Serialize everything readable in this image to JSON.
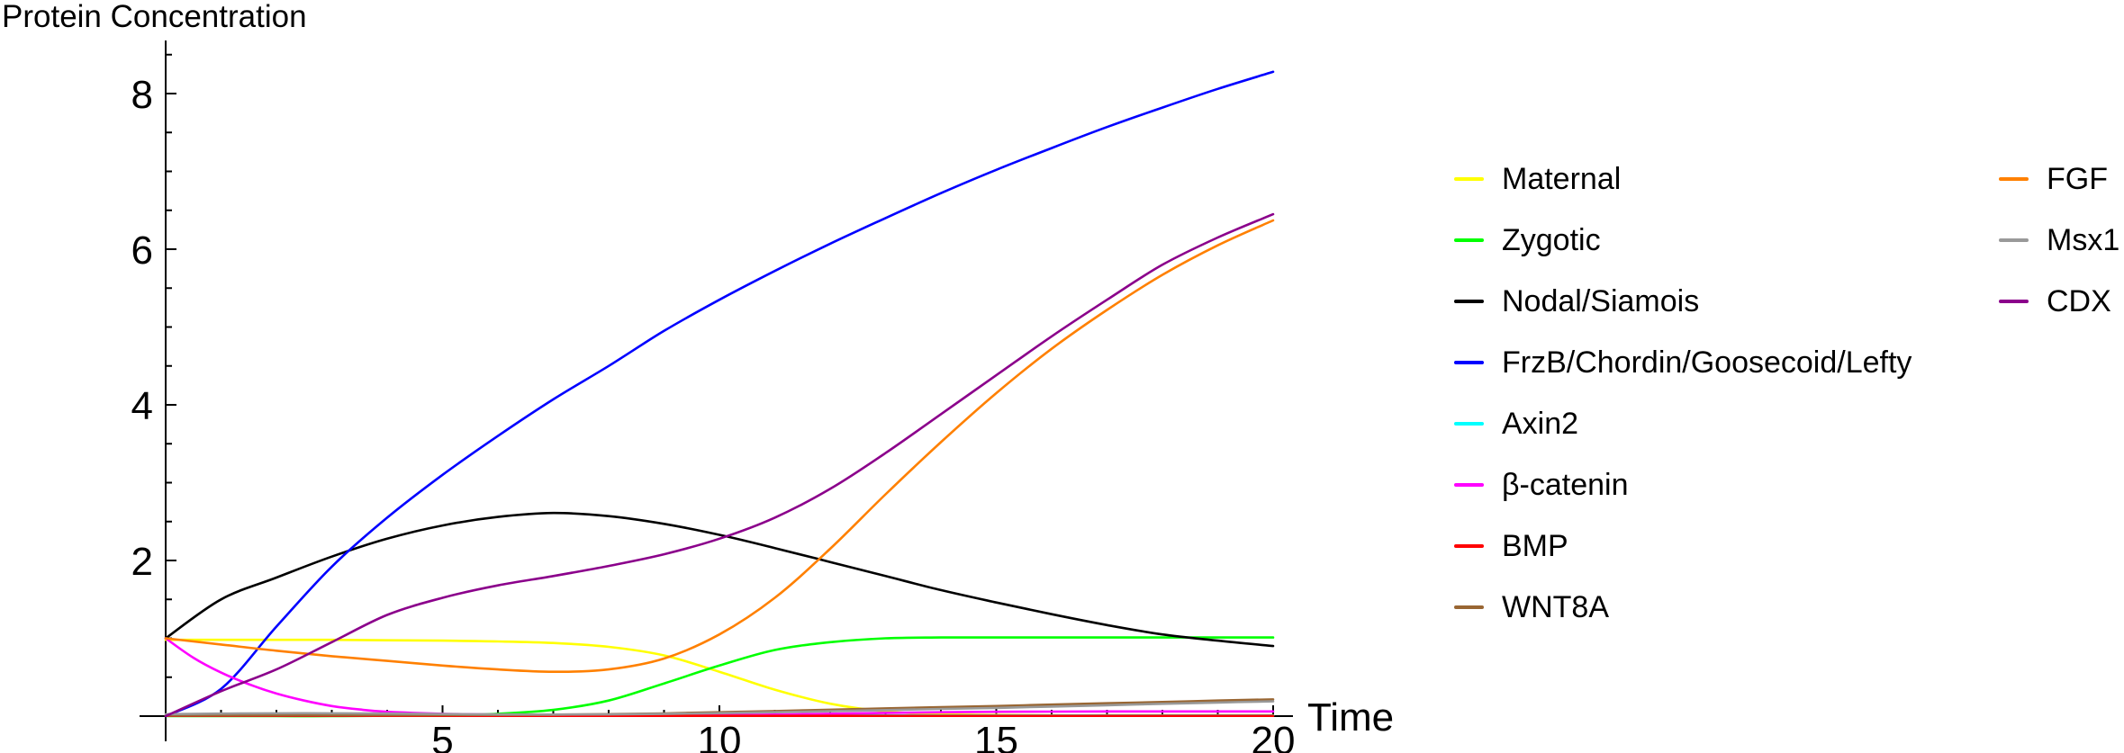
{
  "chart_data": {
    "type": "line",
    "title": "Protein Concentration",
    "xlabel": "Time",
    "ylabel": "",
    "xlim": [
      0,
      20
    ],
    "ylim": [
      0,
      8.6
    ],
    "grid": false,
    "axes_color": "#000000",
    "x_major_ticks": [
      5,
      10,
      15,
      20
    ],
    "x_minor_step": 1,
    "y_major_ticks": [
      2,
      4,
      6,
      8
    ],
    "y_minor_step": 0.5,
    "legend_position": "right, two columns",
    "series": [
      {
        "name": "Maternal",
        "color": "#FFFF00",
        "points": [
          [
            0,
            0.98
          ],
          [
            1,
            0.98
          ],
          [
            2,
            0.98
          ],
          [
            3,
            0.98
          ],
          [
            4,
            0.975
          ],
          [
            5,
            0.97
          ],
          [
            6,
            0.96
          ],
          [
            7,
            0.94
          ],
          [
            8,
            0.89
          ],
          [
            9,
            0.78
          ],
          [
            10,
            0.57
          ],
          [
            11,
            0.34
          ],
          [
            12,
            0.16
          ],
          [
            13,
            0.06
          ],
          [
            14,
            0.025
          ],
          [
            15,
            0.015
          ],
          [
            16,
            0.01
          ],
          [
            17,
            0.01
          ],
          [
            18,
            0.01
          ],
          [
            19,
            0.01
          ],
          [
            20,
            0.01
          ]
        ]
      },
      {
        "name": "Zygotic",
        "color": "#00FF00",
        "points": [
          [
            0,
            0
          ],
          [
            1,
            0
          ],
          [
            2,
            0
          ],
          [
            3,
            0
          ],
          [
            4,
            0.005
          ],
          [
            5,
            0.01
          ],
          [
            6,
            0.03
          ],
          [
            7,
            0.08
          ],
          [
            8,
            0.2
          ],
          [
            9,
            0.42
          ],
          [
            10,
            0.65
          ],
          [
            11,
            0.85
          ],
          [
            12,
            0.95
          ],
          [
            13,
            1.0
          ],
          [
            14,
            1.01
          ],
          [
            15,
            1.01
          ],
          [
            16,
            1.01
          ],
          [
            17,
            1.01
          ],
          [
            18,
            1.01
          ],
          [
            19,
            1.01
          ],
          [
            20,
            1.01
          ]
        ]
      },
      {
        "name": "Nodal/Siamois",
        "color": "#000000",
        "points": [
          [
            0,
            1
          ],
          [
            1,
            1.5
          ],
          [
            2,
            1.78
          ],
          [
            3,
            2.05
          ],
          [
            4,
            2.28
          ],
          [
            5,
            2.45
          ],
          [
            6,
            2.56
          ],
          [
            7,
            2.61
          ],
          [
            8,
            2.57
          ],
          [
            9,
            2.47
          ],
          [
            10,
            2.33
          ],
          [
            11,
            2.16
          ],
          [
            12,
            1.98
          ],
          [
            13,
            1.8
          ],
          [
            14,
            1.62
          ],
          [
            15,
            1.46
          ],
          [
            16,
            1.31
          ],
          [
            17,
            1.17
          ],
          [
            18,
            1.05
          ],
          [
            19,
            0.97
          ],
          [
            20,
            0.9
          ]
        ]
      },
      {
        "name": "FrzB/Chordin/Goosecoid/Lefty",
        "color": "#0000FF",
        "points": [
          [
            0,
            0
          ],
          [
            1,
            0.35
          ],
          [
            2,
            1.15
          ],
          [
            3,
            1.92
          ],
          [
            4,
            2.55
          ],
          [
            5,
            3.1
          ],
          [
            6,
            3.6
          ],
          [
            7,
            4.07
          ],
          [
            8,
            4.5
          ],
          [
            9,
            4.95
          ],
          [
            10,
            5.35
          ],
          [
            11,
            5.72
          ],
          [
            12,
            6.07
          ],
          [
            13,
            6.4
          ],
          [
            14,
            6.72
          ],
          [
            15,
            7.02
          ],
          [
            16,
            7.3
          ],
          [
            17,
            7.57
          ],
          [
            18,
            7.82
          ],
          [
            19,
            8.06
          ],
          [
            20,
            8.28
          ]
        ]
      },
      {
        "name": "Axin2",
        "color": "#00FFFF",
        "points": [
          [
            0,
            0.008
          ],
          [
            5,
            0.008
          ],
          [
            10,
            0.008
          ],
          [
            15,
            0.008
          ],
          [
            20,
            0.008
          ]
        ]
      },
      {
        "name": "β-catenin",
        "color": "#FF00FF",
        "points": [
          [
            0,
            1
          ],
          [
            0.5,
            0.75
          ],
          [
            1,
            0.56
          ],
          [
            1.5,
            0.41
          ],
          [
            2,
            0.29
          ],
          [
            2.5,
            0.2
          ],
          [
            3,
            0.13
          ],
          [
            3.5,
            0.085
          ],
          [
            4,
            0.055
          ],
          [
            5,
            0.03
          ],
          [
            6,
            0.02
          ],
          [
            7,
            0.013
          ],
          [
            8,
            0.01
          ],
          [
            9,
            0.01
          ],
          [
            10,
            0.013
          ],
          [
            11,
            0.02
          ],
          [
            12,
            0.03
          ],
          [
            13,
            0.042
          ],
          [
            14,
            0.05
          ],
          [
            15,
            0.055
          ],
          [
            16,
            0.058
          ],
          [
            17,
            0.06
          ],
          [
            18,
            0.06
          ],
          [
            19,
            0.06
          ],
          [
            20,
            0.06
          ]
        ]
      },
      {
        "name": "BMP",
        "color": "#FF0000",
        "points": [
          [
            0,
            0.004
          ],
          [
            5,
            0.004
          ],
          [
            10,
            0.004
          ],
          [
            15,
            0.004
          ],
          [
            20,
            0.004
          ]
        ]
      },
      {
        "name": "WNT8A",
        "color": "#996633",
        "points": [
          [
            0,
            0.008
          ],
          [
            2,
            0.01
          ],
          [
            4,
            0.012
          ],
          [
            6,
            0.015
          ],
          [
            7,
            0.02
          ],
          [
            8,
            0.025
          ],
          [
            9,
            0.035
          ],
          [
            10,
            0.05
          ],
          [
            11,
            0.065
          ],
          [
            12,
            0.082
          ],
          [
            13,
            0.1
          ],
          [
            14,
            0.115
          ],
          [
            15,
            0.13
          ],
          [
            16,
            0.148
          ],
          [
            17,
            0.165
          ],
          [
            18,
            0.182
          ],
          [
            19,
            0.2
          ],
          [
            20,
            0.215
          ]
        ]
      },
      {
        "name": "FGF",
        "color": "#FF8000",
        "points": [
          [
            0,
            1
          ],
          [
            1,
            0.92
          ],
          [
            2,
            0.84
          ],
          [
            3,
            0.77
          ],
          [
            4,
            0.71
          ],
          [
            5,
            0.65
          ],
          [
            6,
            0.6
          ],
          [
            7,
            0.57
          ],
          [
            8,
            0.6
          ],
          [
            9,
            0.74
          ],
          [
            10,
            1.05
          ],
          [
            11,
            1.52
          ],
          [
            12,
            2.15
          ],
          [
            13,
            2.85
          ],
          [
            14,
            3.52
          ],
          [
            15,
            4.15
          ],
          [
            16,
            4.72
          ],
          [
            17,
            5.22
          ],
          [
            18,
            5.67
          ],
          [
            19,
            6.05
          ],
          [
            20,
            6.37
          ]
        ]
      },
      {
        "name": "Msx1",
        "color": "#999999",
        "points": [
          [
            0,
            0.025
          ],
          [
            1,
            0.032
          ],
          [
            2,
            0.036
          ],
          [
            3,
            0.036
          ],
          [
            4,
            0.032
          ],
          [
            5,
            0.027
          ],
          [
            6,
            0.022
          ],
          [
            7,
            0.02
          ],
          [
            8,
            0.022
          ],
          [
            9,
            0.028
          ],
          [
            10,
            0.038
          ],
          [
            11,
            0.05
          ],
          [
            12,
            0.063
          ],
          [
            13,
            0.078
          ],
          [
            14,
            0.092
          ],
          [
            15,
            0.105
          ],
          [
            16,
            0.122
          ],
          [
            17,
            0.14
          ],
          [
            18,
            0.158
          ],
          [
            19,
            0.175
          ],
          [
            20,
            0.19
          ]
        ]
      },
      {
        "name": "CDX",
        "color": "#8B008B",
        "points": [
          [
            0,
            0
          ],
          [
            1,
            0.32
          ],
          [
            2,
            0.6
          ],
          [
            3,
            0.95
          ],
          [
            4,
            1.3
          ],
          [
            5,
            1.52
          ],
          [
            6,
            1.68
          ],
          [
            7,
            1.8
          ],
          [
            8,
            1.93
          ],
          [
            9,
            2.08
          ],
          [
            10,
            2.28
          ],
          [
            11,
            2.55
          ],
          [
            12,
            2.92
          ],
          [
            13,
            3.38
          ],
          [
            14,
            3.88
          ],
          [
            15,
            4.38
          ],
          [
            16,
            4.88
          ],
          [
            17,
            5.35
          ],
          [
            18,
            5.8
          ],
          [
            19,
            6.15
          ],
          [
            20,
            6.45
          ]
        ]
      }
    ],
    "legend_columns": [
      [
        "Maternal",
        "Zygotic",
        "Nodal/Siamois",
        "FrzB/Chordin/Goosecoid/Lefty",
        "Axin2",
        "β-catenin",
        "BMP",
        "WNT8A"
      ],
      [
        "FGF",
        "Msx1",
        "CDX"
      ]
    ]
  }
}
